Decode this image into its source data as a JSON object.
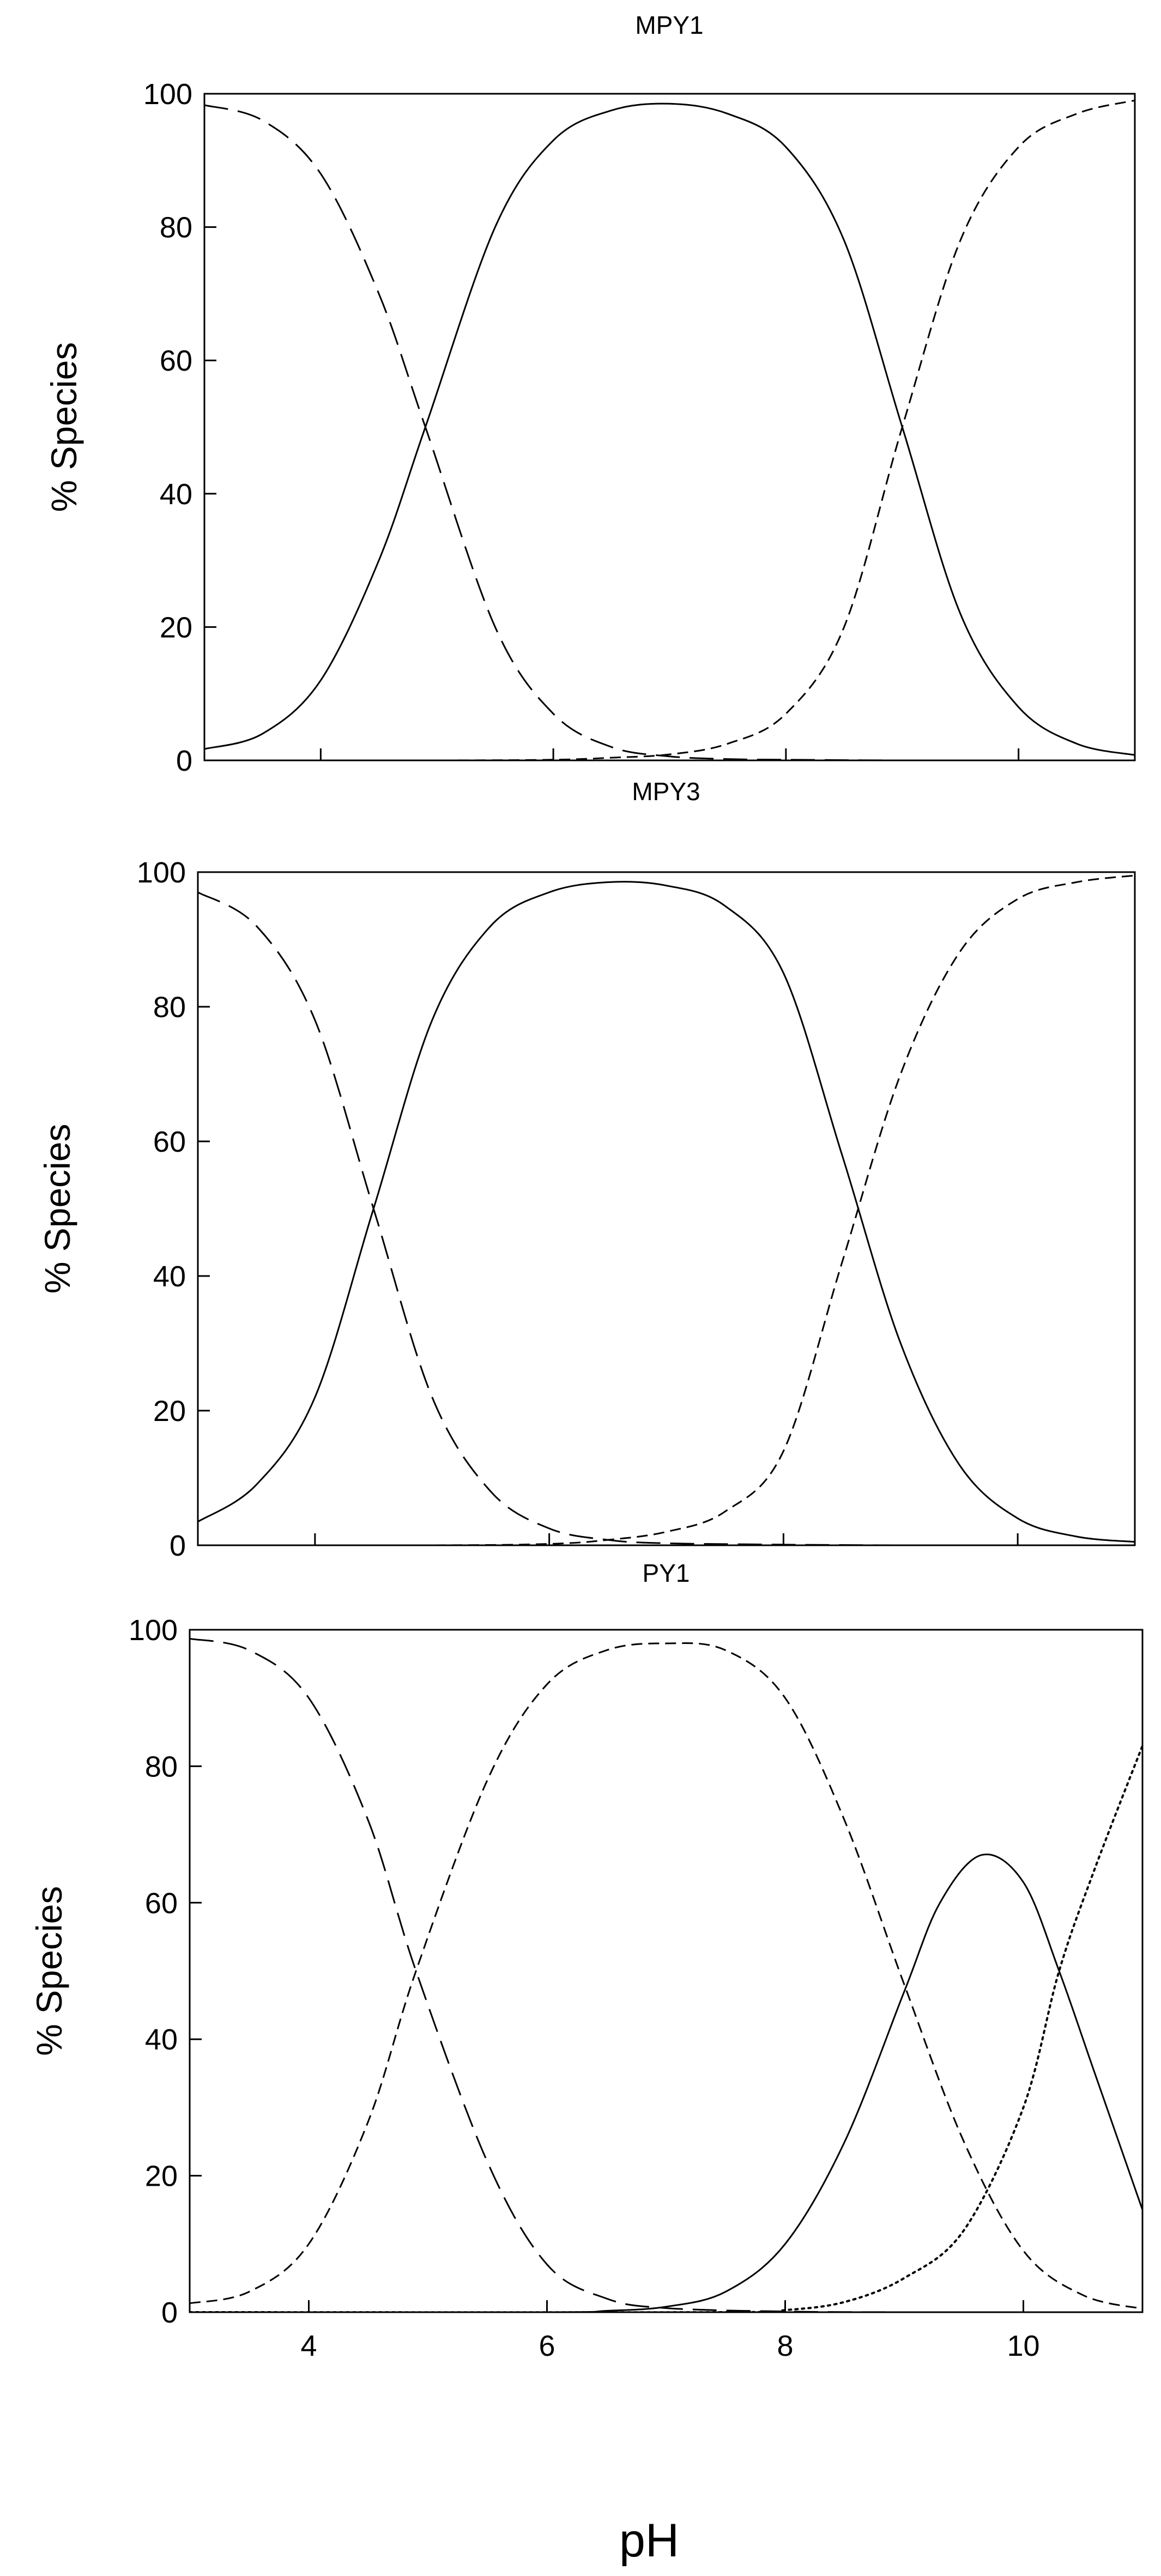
{
  "figure": {
    "xlabel": "pH"
  },
  "chart_data": [
    {
      "type": "line",
      "title": "MPY1",
      "xlabel": "",
      "ylabel": "% Species",
      "xlim": [
        3,
        11
      ],
      "ylim": [
        0,
        100
      ],
      "yticks": [
        0,
        20,
        40,
        60,
        80,
        100
      ],
      "xticks": [
        4,
        6,
        8,
        10
      ],
      "show_xtick_labels": false,
      "grid": false,
      "series": [
        {
          "style": "long-dash",
          "x": [
            3,
            3.5,
            4,
            4.5,
            4.9,
            5.5,
            6,
            6.5,
            7,
            7.5,
            8,
            9,
            10,
            11
          ],
          "y": [
            98.3,
            96,
            88,
            70,
            50,
            20,
            7,
            2,
            0.6,
            0.2,
            0.1,
            0,
            0,
            0
          ]
        },
        {
          "style": "solid",
          "x": [
            3,
            3.5,
            4,
            4.5,
            4.9,
            5.5,
            6,
            6.5,
            7,
            7.5,
            8,
            8.5,
            9,
            9.5,
            10,
            10.5,
            11
          ],
          "y": [
            1.7,
            4,
            12,
            30,
            50,
            80,
            93,
            97.5,
            98.5,
            97,
            92,
            78,
            50,
            22,
            8,
            2.5,
            0.8
          ]
        },
        {
          "style": "short-dash",
          "x": [
            3,
            5,
            6,
            6.5,
            7,
            7.5,
            8,
            8.5,
            9,
            9.5,
            10,
            10.5,
            11
          ],
          "y": [
            0,
            0,
            0.1,
            0.4,
            0.9,
            2.5,
            7,
            20,
            50,
            78,
            92,
            97,
            99
          ]
        }
      ]
    },
    {
      "type": "line",
      "title": "MPY3",
      "xlabel": "",
      "ylabel": "% Species",
      "xlim": [
        3,
        11
      ],
      "ylim": [
        0,
        100
      ],
      "yticks": [
        0,
        20,
        40,
        60,
        80,
        100
      ],
      "xticks": [
        4,
        6,
        8,
        10
      ],
      "show_xtick_labels": false,
      "grid": false,
      "series": [
        {
          "style": "long-dash",
          "x": [
            3,
            3.5,
            4,
            4.5,
            5,
            5.5,
            6,
            6.5,
            7,
            8,
            9,
            10,
            11
          ],
          "y": [
            97,
            92,
            78,
            50,
            22,
            8,
            2.5,
            0.8,
            0.3,
            0.1,
            0,
            0,
            0
          ]
        },
        {
          "style": "solid",
          "x": [
            3,
            3.5,
            4,
            4.5,
            5,
            5.5,
            6,
            6.5,
            7,
            7.5,
            8,
            8.5,
            9,
            9.5,
            10,
            10.5,
            11
          ],
          "y": [
            3.5,
            9,
            22,
            50,
            78,
            92,
            97,
            98.5,
            98,
            95,
            85,
            58,
            30,
            12,
            4,
            1.3,
            0.5
          ]
        },
        {
          "style": "short-dash",
          "x": [
            3,
            5,
            6,
            6.5,
            7,
            7.5,
            8,
            8.5,
            9,
            9.5,
            10,
            10.5,
            11
          ],
          "y": [
            0,
            0,
            0.2,
            0.8,
            2,
            5,
            14,
            42,
            70,
            88,
            96,
            98.5,
            99.5
          ]
        }
      ]
    },
    {
      "type": "line",
      "title": "PY1",
      "xlabel": "",
      "ylabel": "% Species",
      "xlim": [
        3,
        11
      ],
      "ylim": [
        0,
        100
      ],
      "yticks": [
        0,
        20,
        40,
        60,
        80,
        100
      ],
      "xticks": [
        4,
        6,
        8,
        10
      ],
      "show_xtick_labels": true,
      "grid": false,
      "series": [
        {
          "style": "long-dash",
          "x": [
            3,
            3.5,
            4,
            4.5,
            4.9,
            5.5,
            6,
            6.5,
            7,
            8,
            9,
            10,
            11
          ],
          "y": [
            98.7,
            97,
            90,
            72,
            50,
            22,
            7,
            2,
            0.6,
            0.1,
            0,
            0,
            0
          ]
        },
        {
          "style": "short-dash",
          "x": [
            3,
            3.5,
            4,
            4.5,
            4.9,
            5.5,
            6,
            6.5,
            7,
            7.5,
            8,
            8.5,
            9,
            9.5,
            10,
            10.5,
            11
          ],
          "y": [
            1.3,
            3,
            10,
            28,
            50,
            78,
            92,
            97,
            98,
            97,
            90,
            72,
            48,
            25,
            9,
            2.5,
            0.5
          ]
        },
        {
          "style": "solid",
          "x": [
            3,
            6,
            6.5,
            7,
            7.5,
            8,
            8.5,
            9,
            9.3,
            9.65,
            10,
            10.3,
            10.6,
            11
          ],
          "y": [
            0,
            0,
            0.2,
            0.8,
            3,
            10,
            25,
            47,
            60,
            67,
            63,
            50,
            35,
            15
          ]
        },
        {
          "style": "dotted",
          "x": [
            3,
            7.5,
            8,
            8.5,
            9,
            9.5,
            10,
            10.3,
            10.6,
            11
          ],
          "y": [
            0,
            0,
            0.3,
            1.5,
            5,
            12,
            30,
            50,
            65,
            83
          ]
        }
      ]
    }
  ]
}
